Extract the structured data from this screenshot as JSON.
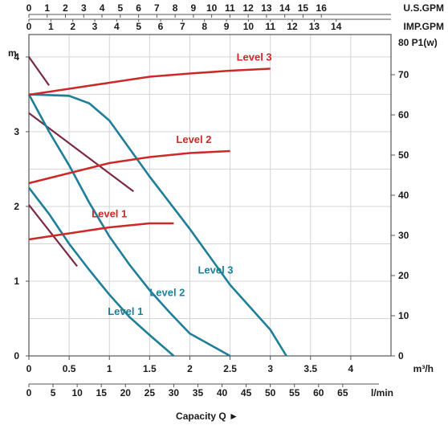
{
  "chart_data": {
    "type": "line",
    "top_scales": {
      "us_gpm": {
        "label": "U.S.GPM",
        "ticks": [
          "0",
          "1",
          "2",
          "3",
          "4",
          "5",
          "6",
          "7",
          "8",
          "9",
          "10",
          "11",
          "12",
          "13",
          "14",
          "15",
          "16"
        ]
      },
      "imp_gpm": {
        "label": "IMP.GPM",
        "ticks": [
          "0",
          "1",
          "2",
          "3",
          "4",
          "5",
          "6",
          "7",
          "8",
          "9",
          "10",
          "11",
          "12",
          "13",
          "14"
        ]
      }
    },
    "left_axis": {
      "label": "m",
      "ticks": [
        "0",
        "1",
        "2",
        "3",
        "4"
      ],
      "range": [
        0,
        4.3
      ]
    },
    "right_axis": {
      "label": "80 P1(w)",
      "ticks": [
        "0",
        "10",
        "20",
        "30",
        "40",
        "50",
        "60",
        "70"
      ],
      "range": [
        0,
        80
      ]
    },
    "x_axis_m3h": {
      "unit": "m³/h",
      "ticks": [
        "0",
        "0.5",
        "1",
        "1.5",
        "2",
        "2.5",
        "3",
        "3.5",
        "4"
      ],
      "range": [
        0,
        4.5
      ]
    },
    "x_axis_lmin": {
      "unit": "l/min",
      "ticks": [
        "0",
        "5",
        "10",
        "15",
        "20",
        "25",
        "30",
        "35",
        "40",
        "45",
        "50",
        "55",
        "60",
        "65"
      ]
    },
    "xlabel": "Capacity Q ►",
    "head_series": [
      {
        "name": "Level 1",
        "color": "#1f7f9a",
        "points": [
          [
            0,
            2.25
          ],
          [
            0.25,
            1.9
          ],
          [
            0.5,
            1.5
          ],
          [
            0.75,
            1.15
          ],
          [
            1.0,
            0.82
          ],
          [
            1.25,
            0.52
          ],
          [
            1.5,
            0.28
          ],
          [
            1.8,
            0.0
          ]
        ]
      },
      {
        "name": "Level 2",
        "color": "#1f7f9a",
        "points": [
          [
            0,
            3.5
          ],
          [
            0.25,
            3.0
          ],
          [
            0.5,
            2.55
          ],
          [
            0.75,
            2.05
          ],
          [
            1.0,
            1.6
          ],
          [
            1.25,
            1.22
          ],
          [
            1.5,
            0.88
          ],
          [
            1.75,
            0.58
          ],
          [
            2.0,
            0.3
          ],
          [
            2.5,
            0.0
          ]
        ]
      },
      {
        "name": "Level 3",
        "color": "#1f7f9a",
        "points": [
          [
            0,
            3.5
          ],
          [
            0.5,
            3.48
          ],
          [
            0.75,
            3.38
          ],
          [
            1.0,
            3.15
          ],
          [
            1.5,
            2.4
          ],
          [
            2.0,
            1.7
          ],
          [
            2.5,
            0.95
          ],
          [
            3.0,
            0.35
          ],
          [
            3.2,
            0.0
          ]
        ]
      }
    ],
    "power_series": [
      {
        "name": "Level 1",
        "color": "#cc2a2a",
        "points": [
          [
            0,
            29
          ],
          [
            0.5,
            30.5
          ],
          [
            1.0,
            32
          ],
          [
            1.5,
            33
          ],
          [
            1.8,
            33
          ]
        ]
      },
      {
        "name": "Level 2",
        "color": "#cc2a2a",
        "points": [
          [
            0,
            43
          ],
          [
            0.5,
            45.5
          ],
          [
            1.0,
            48
          ],
          [
            1.5,
            49.5
          ],
          [
            2.0,
            50.5
          ],
          [
            2.5,
            51
          ]
        ]
      },
      {
        "name": "Level 3",
        "color": "#cc2a2a",
        "points": [
          [
            0,
            65
          ],
          [
            0.5,
            66.5
          ],
          [
            1.0,
            68
          ],
          [
            1.5,
            69.5
          ],
          [
            2.0,
            70.3
          ],
          [
            2.5,
            71
          ],
          [
            3.0,
            71.5
          ],
          [
            3.0,
            71.5
          ]
        ]
      }
    ],
    "connector_series": [
      {
        "color": "#7a2a45",
        "points": [
          [
            0,
            2.02
          ],
          [
            0.6,
            1.2
          ]
        ]
      },
      {
        "color": "#7a2a45",
        "points": [
          [
            0,
            4.0
          ],
          [
            0.25,
            3.62
          ]
        ]
      },
      {
        "color": "#7a2a45",
        "points": [
          [
            0,
            3.25
          ],
          [
            1.3,
            2.2
          ]
        ]
      }
    ],
    "labels": {
      "head": [
        {
          "text": "Level 1",
          "x": 1.2,
          "y": 0.55
        },
        {
          "text": "Level 2",
          "x": 1.72,
          "y": 0.8
        },
        {
          "text": "Level 3",
          "x": 2.32,
          "y": 1.1
        }
      ],
      "power": [
        {
          "text": "Level 1",
          "x": 1.0,
          "y": 34.5
        },
        {
          "text": "Level 2",
          "x": 2.05,
          "y": 53
        },
        {
          "text": "Level 3",
          "x": 2.8,
          "y": 73.5
        }
      ]
    },
    "grid": true
  }
}
